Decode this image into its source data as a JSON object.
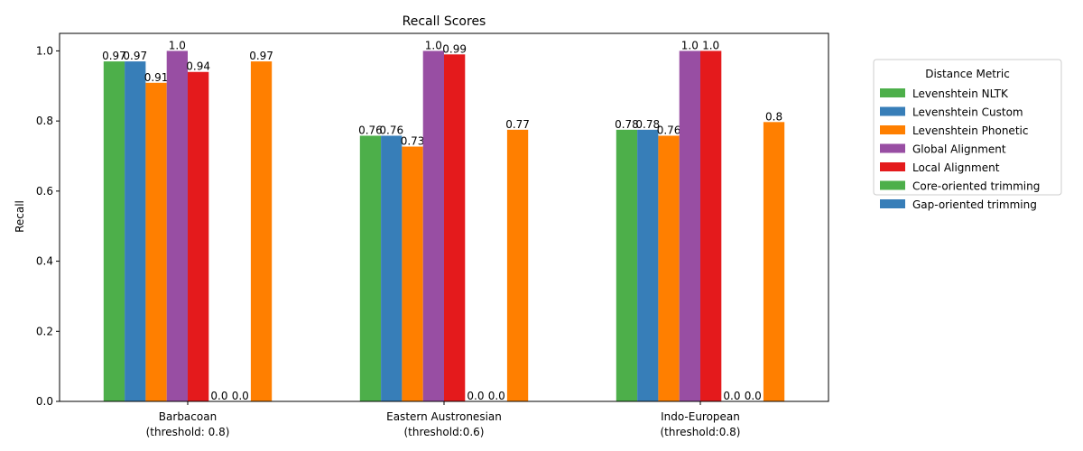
{
  "chart_data": {
    "type": "bar",
    "title": "Recall Scores",
    "xlabel": "",
    "ylabel": "Recall",
    "ylim": [
      0,
      1.05
    ],
    "yticks": [
      0.0,
      0.2,
      0.4,
      0.6,
      0.8,
      1.0
    ],
    "ytick_labels": [
      "0.0",
      "0.2",
      "0.4",
      "0.6",
      "0.8",
      "1.0"
    ],
    "grid": false,
    "legend_title": "Distance Metric",
    "legend_placement": "outside-right-top",
    "categories": [
      [
        "Barbacoan",
        "(threshold: 0.8)"
      ],
      [
        "Eastern Austronesian",
        "(threshold:0.6)"
      ],
      [
        "Indo-European",
        "(threshold:0.8)"
      ]
    ],
    "bar_slots": 8,
    "series": [
      {
        "name": "Levenshtein NLTK",
        "color": "#4daf4a",
        "slot": 0,
        "values": [
          0.97,
          0.758,
          0.775
        ],
        "labels": [
          "0.97",
          "0.76",
          "0.78"
        ]
      },
      {
        "name": "Levenshtein Custom",
        "color": "#377eb8",
        "slot": 1,
        "values": [
          0.97,
          0.758,
          0.775
        ],
        "labels": [
          "0.97",
          "0.76",
          "0.78"
        ]
      },
      {
        "name": "Levenshtein Phonetic",
        "color": "#ff7f00",
        "slot": 2,
        "values": [
          0.909,
          0.727,
          0.758
        ],
        "labels": [
          "0.91",
          "0.73",
          "0.76"
        ]
      },
      {
        "name": "Global Alignment",
        "color": "#984ea3",
        "slot": 3,
        "values": [
          1.0,
          1.0,
          1.0
        ],
        "labels": [
          "1.0",
          "1.0",
          "1.0"
        ]
      },
      {
        "name": "Local Alignment",
        "color": "#e41a1c",
        "slot": 4,
        "values": [
          0.94,
          0.99,
          1.0
        ],
        "labels": [
          "0.94",
          "0.99",
          "1.0"
        ]
      },
      {
        "name": "Core-oriented trimming",
        "color": "#4daf4a",
        "slot": 5,
        "values": [
          0.0,
          0.0,
          0.0
        ],
        "labels": [
          "0.0",
          "0.0",
          "0.0"
        ]
      },
      {
        "name": "Gap-oriented trimming",
        "color": "#377eb8",
        "slot": 6,
        "values": [
          0.0,
          0.0,
          0.0
        ],
        "labels": [
          "0.0",
          "0.0",
          "0.0"
        ]
      },
      {
        "name": "",
        "color": "#ff7f00",
        "slot": 7,
        "values": [
          0.97,
          0.775,
          0.797
        ],
        "labels": [
          "0.97",
          "0.77",
          "0.8"
        ]
      }
    ]
  }
}
